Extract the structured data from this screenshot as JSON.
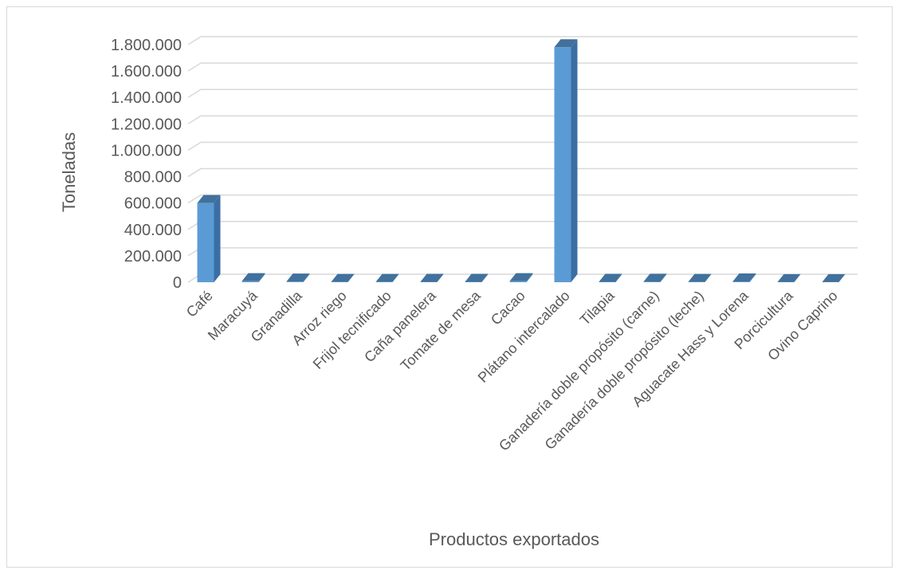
{
  "chart_data": {
    "type": "bar",
    "style": "3d-column",
    "title": "",
    "xlabel": "Productos exportados",
    "ylabel": "Toneladas",
    "ylim": [
      0,
      1800000
    ],
    "grid": true,
    "legend": "none",
    "bar_color": "#5b9bd5",
    "bar_side_color": "#3b6fa3",
    "bar_top_color": "#41719c",
    "grid_color": "#d9d9d9",
    "text_color": "#595959",
    "yticks": [
      "0",
      "200.000",
      "400.000",
      "600.000",
      "800.000",
      "1.000.000",
      "1.200.000",
      "1.400.000",
      "1.600.000",
      "1.800.000"
    ],
    "categories": [
      "Café",
      "Maracuyá",
      "Granadilla",
      "Arroz riego",
      "Frijol tecnificado",
      "Caña panelera",
      "Tomate de mesa",
      "Cacao",
      "Plátano intercalado",
      "Tilapia",
      "Ganadería doble propósito (carne)",
      "Ganadería doble propósito (leche)",
      "Aguacate Hass y Lorena",
      "Porcicultura",
      "Ovino Caprino"
    ],
    "values": [
      600000,
      8000,
      5000,
      2000,
      2000,
      3000,
      3000,
      8000,
      1780000,
      3000,
      4000,
      2000,
      6000,
      1000,
      1000
    ]
  }
}
